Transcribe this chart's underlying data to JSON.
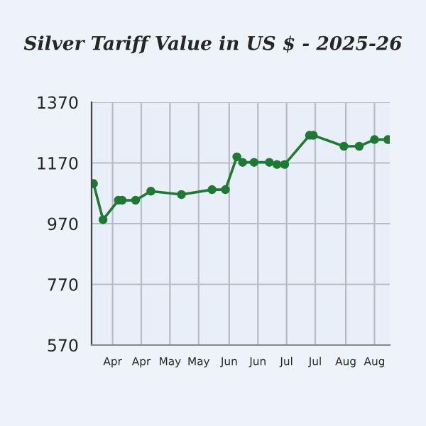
{
  "chart_data": {
    "type": "line",
    "title": "Silver Tariff Value in US $ - 2025-26",
    "x": [
      "2025-03-22",
      "2025-03-27",
      "2025-04-04",
      "2025-04-06",
      "2025-04-13",
      "2025-04-21",
      "2025-05-07",
      "2025-05-23",
      "2025-05-30",
      "2025-06-05",
      "2025-06-08",
      "2025-06-14",
      "2025-06-22",
      "2025-06-26",
      "2025-06-30",
      "2025-07-13",
      "2025-07-15",
      "2025-07-31",
      "2025-08-08",
      "2025-08-16",
      "2025-08-23"
    ],
    "series": [
      {
        "color": "#1e7a32",
        "values": [
          1102,
          983,
          1047,
          1047,
          1047,
          1077,
          1066,
          1082,
          1082,
          1190,
          1172,
          1172,
          1172,
          1165,
          1165,
          1261,
          1261,
          1225,
          1225,
          1247,
          1247
        ]
      }
    ],
    "xlim": [
      "2025-03-21",
      "2025-08-24"
    ],
    "xticks": [
      {
        "value": "2025-04-01",
        "label": "Apr"
      },
      {
        "value": "2025-04-16",
        "label": "Apr"
      },
      {
        "value": "2025-05-01",
        "label": "May"
      },
      {
        "value": "2025-05-16",
        "label": "May"
      },
      {
        "value": "2025-06-01",
        "label": "Jun"
      },
      {
        "value": "2025-06-16",
        "label": "Jun"
      },
      {
        "value": "2025-07-01",
        "label": "Jul"
      },
      {
        "value": "2025-07-16",
        "label": "Jul"
      },
      {
        "value": "2025-08-01",
        "label": "Aug"
      },
      {
        "value": "2025-08-16",
        "label": "Aug"
      }
    ],
    "ylim": [
      570,
      1370
    ],
    "yticks": [
      570,
      770,
      970,
      1170,
      1370
    ],
    "grid": true,
    "marker": "circle",
    "line_style": "solid"
  }
}
